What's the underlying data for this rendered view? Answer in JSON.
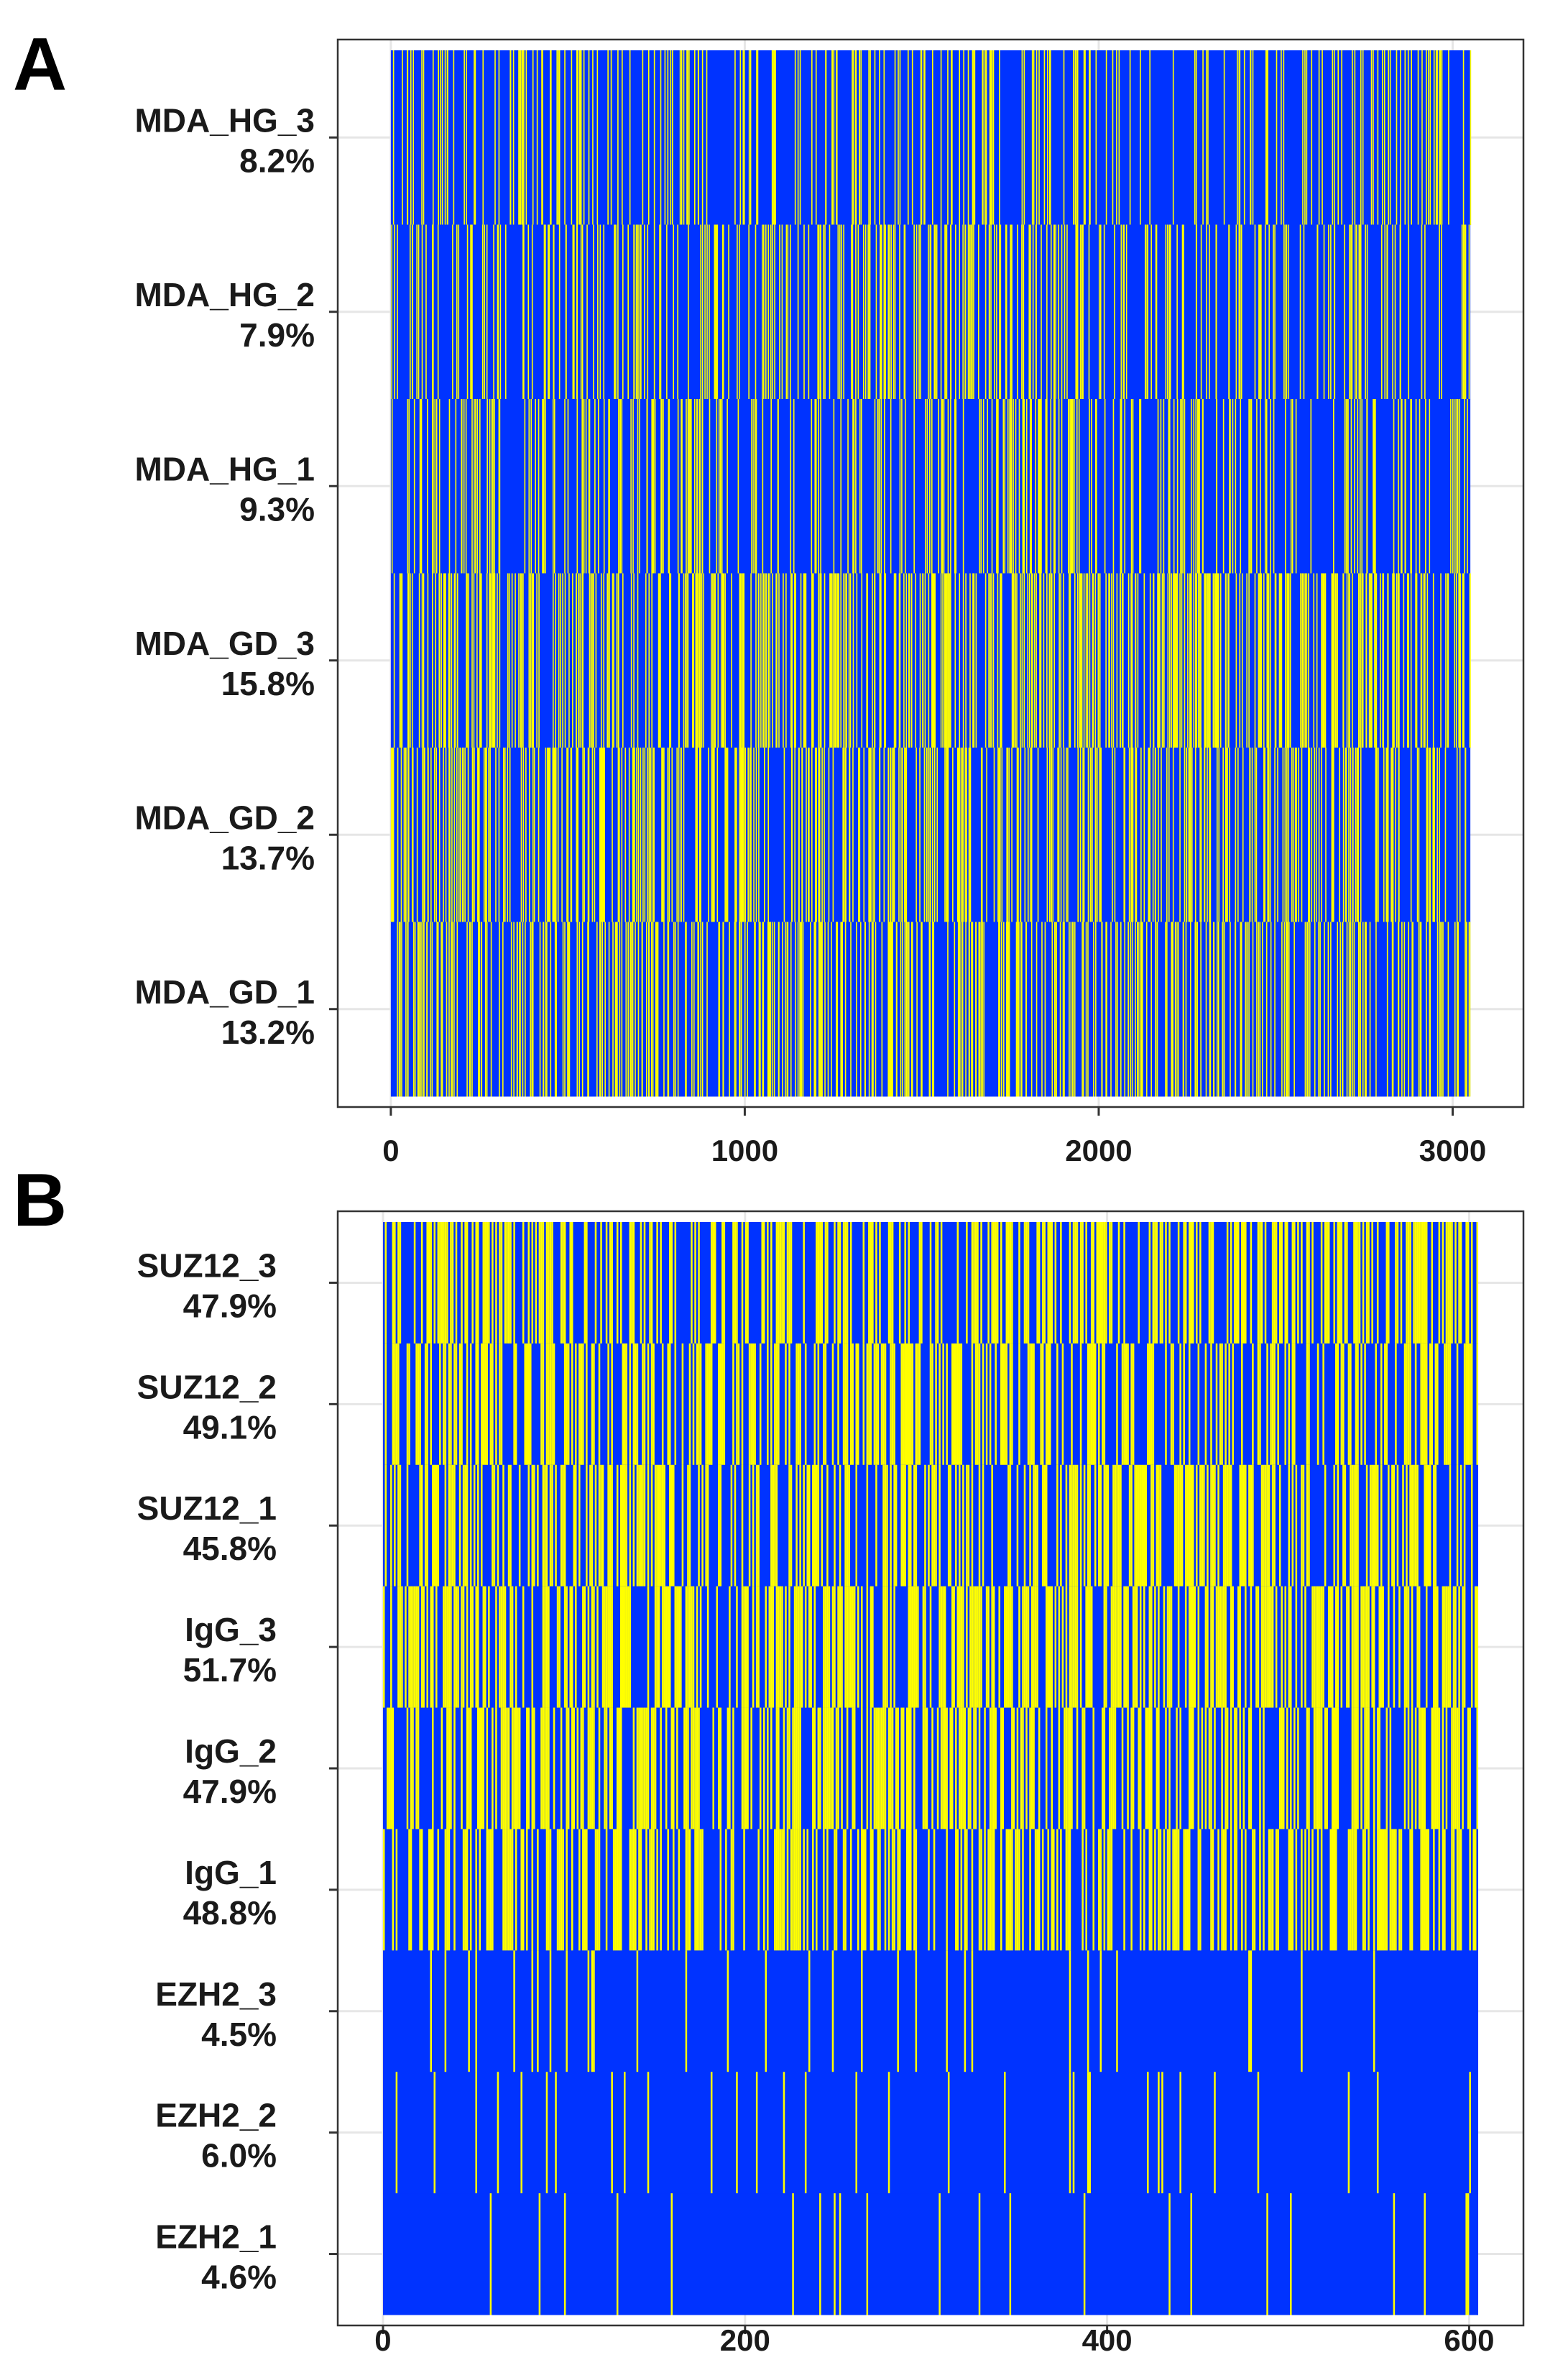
{
  "figure": {
    "panel_labels": [
      "A",
      "B"
    ]
  },
  "chart_data": [
    {
      "panel": "A",
      "type": "heatmap",
      "title": "",
      "xlabel": "",
      "ylabel": "",
      "xlim": [
        -150,
        3200
      ],
      "x_tick_values": [
        0,
        1000,
        2000,
        3000
      ],
      "x_tick_labels": [
        "0",
        "1000",
        "2000",
        "3000"
      ],
      "n_columns": 3050,
      "colors": {
        "absent": "#0033ff",
        "present": "#ffff00"
      },
      "rows": [
        {
          "name": "MDA_HG_3",
          "percent_label": "8.2%",
          "fraction": 0.082,
          "seed": 11
        },
        {
          "name": "MDA_HG_2",
          "percent_label": "7.9%",
          "fraction": 0.079,
          "seed": 23
        },
        {
          "name": "MDA_HG_1",
          "percent_label": "9.3%",
          "fraction": 0.093,
          "seed": 37
        },
        {
          "name": "MDA_GD_3",
          "percent_label": "15.8%",
          "fraction": 0.158,
          "seed": 41
        },
        {
          "name": "MDA_GD_2",
          "percent_label": "13.7%",
          "fraction": 0.137,
          "seed": 53
        },
        {
          "name": "MDA_GD_1",
          "percent_label": "13.2%",
          "fraction": 0.132,
          "seed": 67
        }
      ]
    },
    {
      "panel": "B",
      "type": "heatmap",
      "title": "",
      "xlabel": "",
      "ylabel": "",
      "xlim": [
        -25,
        630
      ],
      "x_tick_values": [
        0,
        200,
        400,
        600
      ],
      "x_tick_labels": [
        "0",
        "200",
        "400",
        "600"
      ],
      "n_columns": 605,
      "colors": {
        "absent": "#0033ff",
        "present": "#ffff00"
      },
      "rows": [
        {
          "name": "SUZ12_3",
          "percent_label": "47.9%",
          "fraction": 0.479,
          "seed": 71
        },
        {
          "name": "SUZ12_2",
          "percent_label": "49.1%",
          "fraction": 0.491,
          "seed": 83
        },
        {
          "name": "SUZ12_1",
          "percent_label": "45.8%",
          "fraction": 0.458,
          "seed": 97
        },
        {
          "name": "IgG_3",
          "percent_label": "51.7%",
          "fraction": 0.517,
          "seed": 101
        },
        {
          "name": "IgG_2",
          "percent_label": "47.9%",
          "fraction": 0.479,
          "seed": 113
        },
        {
          "name": "IgG_1",
          "percent_label": "48.8%",
          "fraction": 0.488,
          "seed": 127
        },
        {
          "name": "EZH2_3",
          "percent_label": "4.5%",
          "fraction": 0.045,
          "seed": 131
        },
        {
          "name": "EZH2_2",
          "percent_label": "6.0%",
          "fraction": 0.06,
          "seed": 139
        },
        {
          "name": "EZH2_1",
          "percent_label": "4.6%",
          "fraction": 0.046,
          "seed": 149
        }
      ]
    }
  ]
}
